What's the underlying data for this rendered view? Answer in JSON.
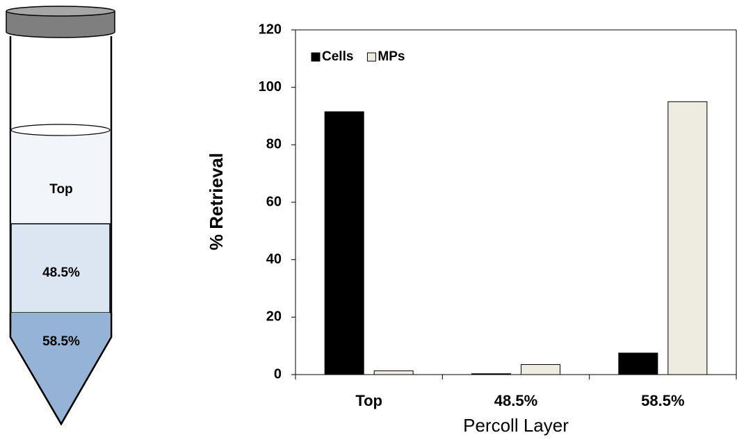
{
  "tube": {
    "layers": [
      "Top",
      "48.5%",
      "58.5%"
    ]
  },
  "chart_data": {
    "type": "bar",
    "x_label": "Percoll Layer",
    "y_label": "%  Retrieval",
    "categories": [
      "Top",
      "48.5%",
      "58.5%"
    ],
    "series": [
      {
        "name": "Cells",
        "color": "#000000",
        "values": [
          91.5,
          0.3,
          7.5
        ]
      },
      {
        "name": "MPs",
        "color": "#eeece1",
        "values": [
          1.3,
          3.5,
          95
        ]
      }
    ],
    "ylim": [
      0,
      120
    ],
    "yticks": [
      0,
      20,
      40,
      60,
      80,
      100,
      120
    ],
    "grid": false,
    "legend": "upper left"
  }
}
